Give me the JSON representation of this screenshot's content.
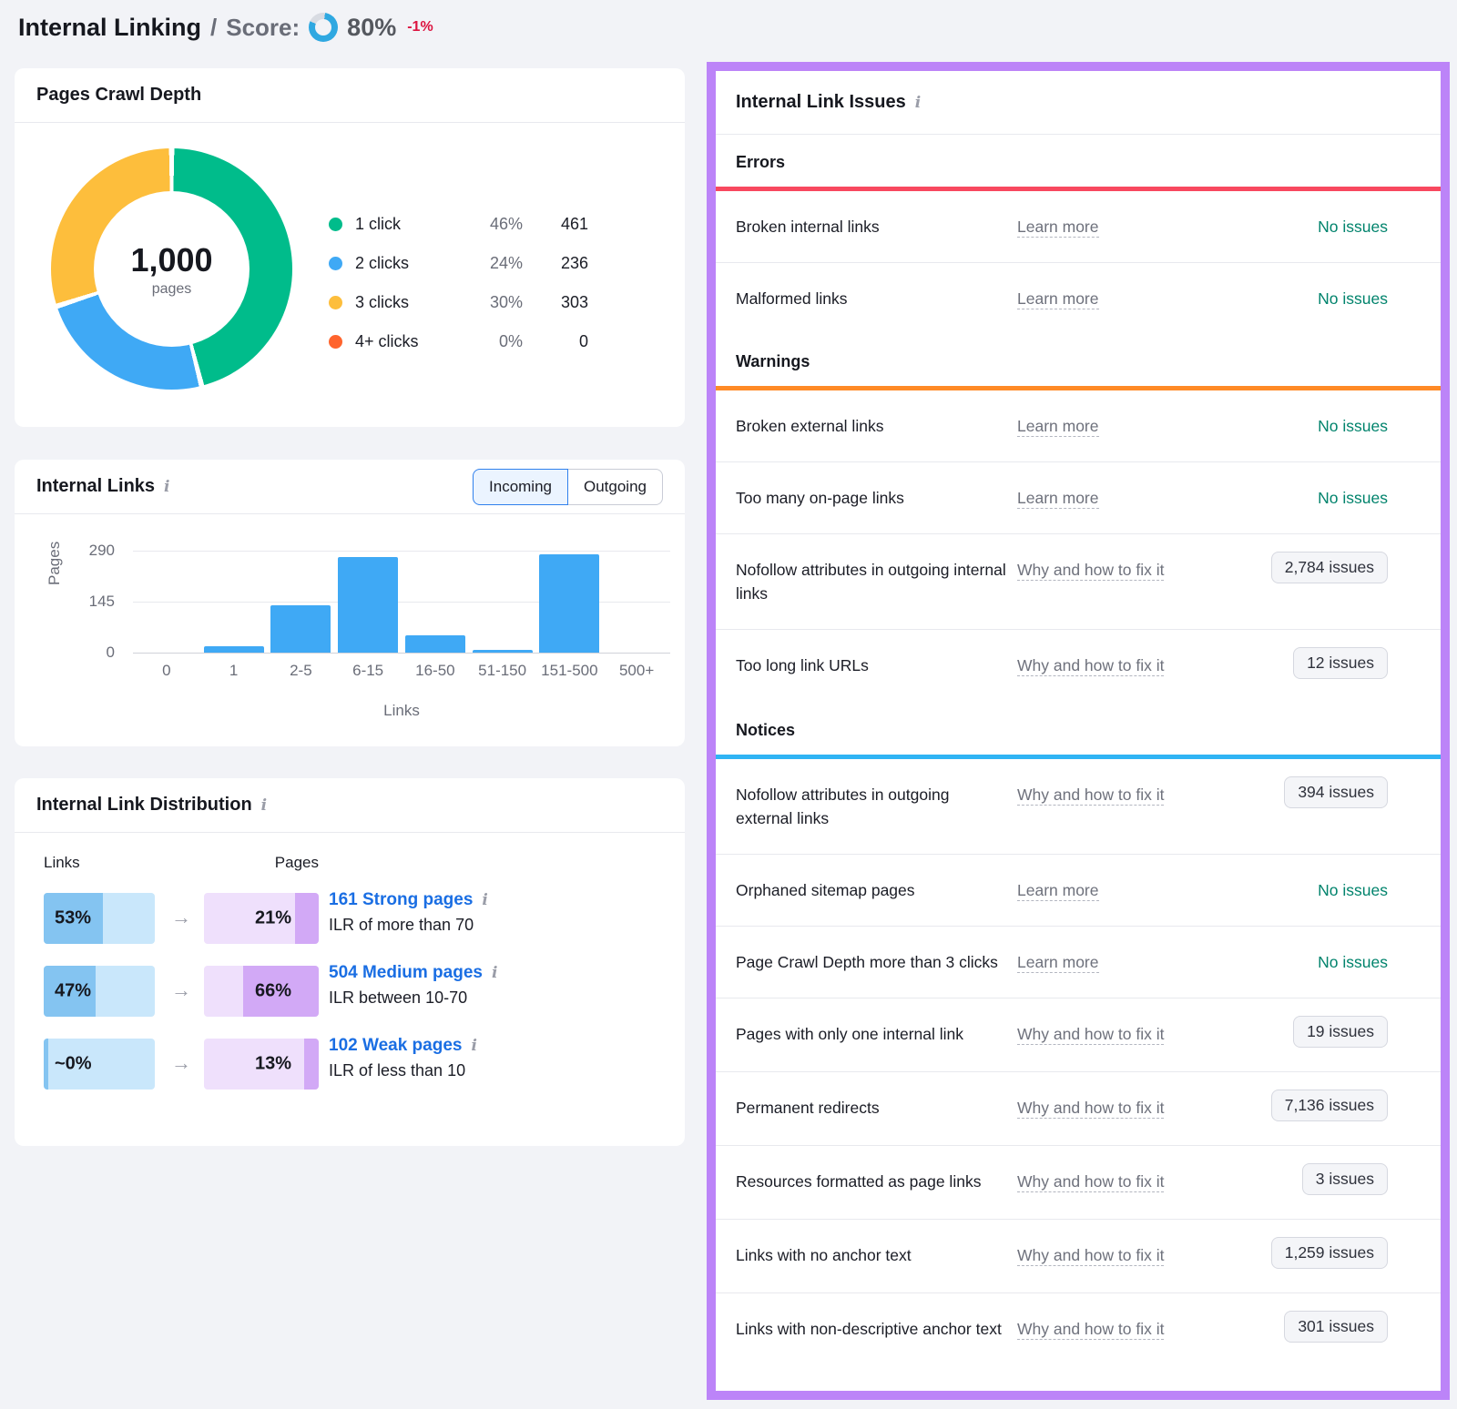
{
  "page": {
    "title": "Internal Linking",
    "separator": "/",
    "score_label": "Score:",
    "score_value": "80%",
    "score_pct": 80,
    "score_delta": "-1%",
    "accent_colors": {
      "score_ring": "#2fa8e1",
      "delta_red": "#dc1440",
      "panel_border_purple": "#bc84f8"
    }
  },
  "chart_data": [
    {
      "type": "pie",
      "title": "Pages Crawl Depth",
      "center_value": "1,000",
      "center_label": "pages",
      "labels": [
        "1 click",
        "2 clicks",
        "3 clicks",
        "4+ clicks"
      ],
      "values_pct": [
        46,
        24,
        30,
        0
      ],
      "values_pages": [
        461,
        236,
        303,
        0
      ],
      "colors": [
        "#00bc8b",
        "#3fa9f5",
        "#fdbe3c",
        "#ff642d"
      ],
      "legend_position": "right"
    },
    {
      "type": "bar",
      "title": "Internal Links (Incoming)",
      "categories": [
        "0",
        "1",
        "2-5",
        "6-15",
        "16-50",
        "51-150",
        "151-500",
        "500+"
      ],
      "values": [
        0,
        18,
        135,
        272,
        50,
        8,
        280,
        0
      ],
      "xlabel": "Links",
      "ylabel": "Pages",
      "yticks": [
        290,
        145,
        0
      ],
      "ylim": [
        0,
        290
      ],
      "bar_color": "#3fa9f5",
      "grid": true
    }
  ],
  "crawl_depth": {
    "title": "Pages Crawl Depth",
    "center_value": "1,000",
    "center_label": "pages",
    "legend": [
      {
        "label": "1 click",
        "pct": "46%",
        "count": "461",
        "color": "#00bc8b"
      },
      {
        "label": "2 clicks",
        "pct": "24%",
        "count": "236",
        "color": "#3fa9f5"
      },
      {
        "label": "3 clicks",
        "pct": "30%",
        "count": "303",
        "color": "#fdbe3c"
      },
      {
        "label": "4+ clicks",
        "pct": "0%",
        "count": "0",
        "color": "#ff642d"
      }
    ]
  },
  "internal_links": {
    "title": "Internal Links",
    "toggle": {
      "incoming": "Incoming",
      "outgoing": "Outgoing",
      "active": "Incoming"
    }
  },
  "distribution": {
    "title": "Internal Link Distribution",
    "col_links": "Links",
    "col_pages": "Pages",
    "rows": [
      {
        "links_pct": "53%",
        "links_fill": 53,
        "pages_pct": "21%",
        "pages_fill": 21,
        "link_text": "161 Strong pages",
        "desc": "ILR of more than 70"
      },
      {
        "links_pct": "47%",
        "links_fill": 47,
        "pages_pct": "66%",
        "pages_fill": 66,
        "link_text": "504 Medium pages",
        "desc": "ILR between 10-70"
      },
      {
        "links_pct": "~0%",
        "links_fill": 4,
        "pages_pct": "13%",
        "pages_fill": 13,
        "link_text": "102 Weak pages",
        "desc": "ILR of less than 10"
      }
    ]
  },
  "issues": {
    "title": "Internal Link Issues",
    "sections": [
      {
        "name": "Errors",
        "color": "#f8485f",
        "rows": [
          {
            "label": "Broken internal links",
            "link": "Learn more",
            "status": "No issues",
            "badge": false
          },
          {
            "label": "Malformed links",
            "link": "Learn more",
            "status": "No issues",
            "badge": false
          }
        ]
      },
      {
        "name": "Warnings",
        "color": "#ff8a26",
        "rows": [
          {
            "label": "Broken external links",
            "link": "Learn more",
            "status": "No issues",
            "badge": false
          },
          {
            "label": "Too many on-page links",
            "link": "Learn more",
            "status": "No issues",
            "badge": false
          },
          {
            "label": "Nofollow attributes in outgoing internal links",
            "link": "Why and how to fix it",
            "status": "2,784 issues",
            "badge": true
          },
          {
            "label": "Too long link URLs",
            "link": "Why and how to fix it",
            "status": "12 issues",
            "badge": true
          }
        ]
      },
      {
        "name": "Notices",
        "color": "#2fb4f4",
        "rows": [
          {
            "label": "Nofollow attributes in outgoing external links",
            "link": "Why and how to fix it",
            "status": "394 issues",
            "badge": true
          },
          {
            "label": "Orphaned sitemap pages",
            "link": "Learn more",
            "status": "No issues",
            "badge": false
          },
          {
            "label": "Page Crawl Depth more than 3 clicks",
            "link": "Learn more",
            "status": "No issues",
            "badge": false
          },
          {
            "label": "Pages with only one internal link",
            "link": "Why and how to fix it",
            "status": "19 issues",
            "badge": true
          },
          {
            "label": "Permanent redirects",
            "link": "Why and how to fix it",
            "status": "7,136 issues",
            "badge": true
          },
          {
            "label": "Resources formatted as page links",
            "link": "Why and how to fix it",
            "status": "3 issues",
            "badge": true
          },
          {
            "label": "Links with no anchor text",
            "link": "Why and how to fix it",
            "status": "1,259 issues",
            "badge": true
          },
          {
            "label": "Links with non-descriptive anchor text",
            "link": "Why and how to fix it",
            "status": "301 issues",
            "badge": true
          }
        ]
      }
    ]
  }
}
